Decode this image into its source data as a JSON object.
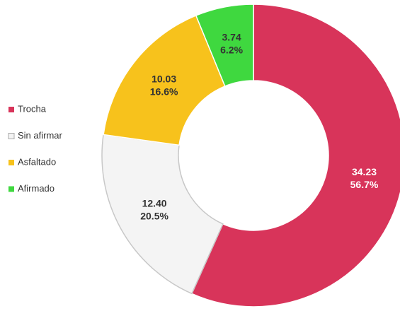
{
  "chart_data": {
    "type": "donut",
    "categories": [
      "Trocha",
      "Sin afirmar",
      "Asfaltado",
      "Afirmado"
    ],
    "values": [
      34.23,
      12.4,
      10.03,
      3.74
    ],
    "value_labels": [
      "34.23",
      "12.40",
      "10.03",
      "3.74"
    ],
    "percent_labels": [
      "56.7%",
      "20.5%",
      "16.6%",
      "6.2%"
    ],
    "colors": [
      "#d8345a",
      "#f4f4f4",
      "#f7c21c",
      "#3fd83f"
    ],
    "label_colors": [
      "#ffffff",
      "#333333",
      "#333333",
      "#333333"
    ],
    "legend": "left"
  }
}
